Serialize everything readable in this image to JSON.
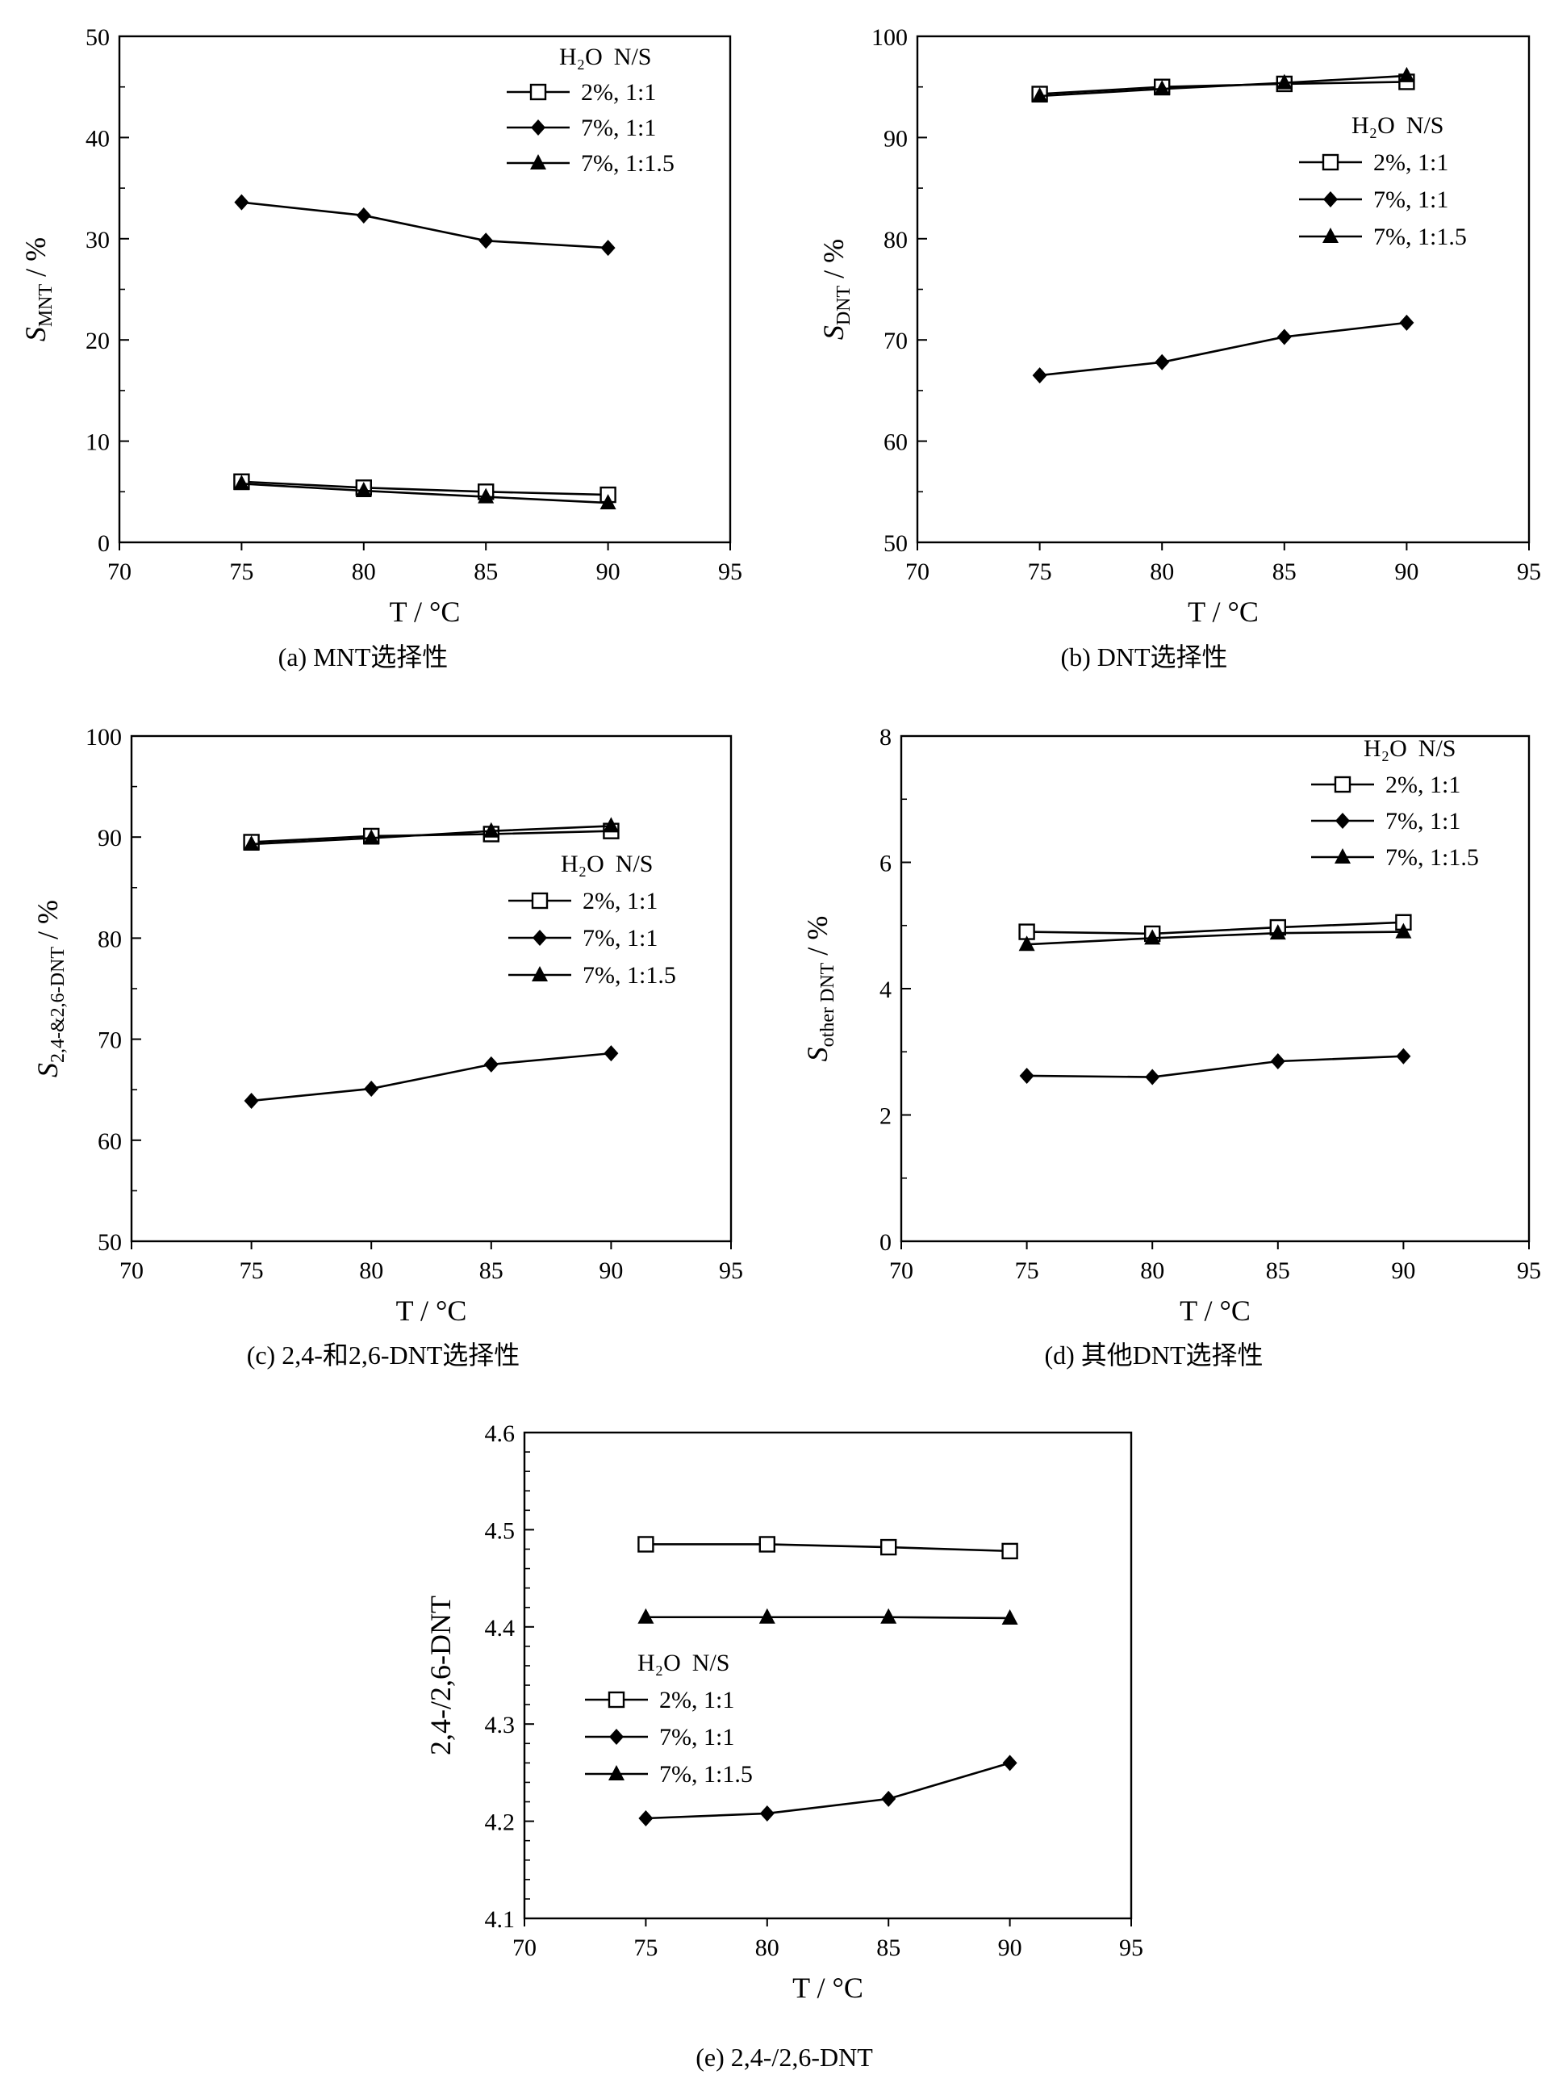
{
  "legend_header": {
    "h2o": "H₂O",
    "ns": "N/S"
  },
  "series_names": [
    "2%, 1:1",
    "7%, 1:1",
    "7%, 1:1.5"
  ],
  "markers": [
    "open-square",
    "filled-diamond",
    "filled-triangle"
  ],
  "colors": {
    "line": "#000000",
    "background": "#ffffff"
  },
  "chart_data": [
    {
      "id": "a",
      "type": "line",
      "caption": "(a) MNT选择性",
      "xlabel": "T / °C",
      "ylabel_main": "S",
      "ylabel_sub": "MNT",
      "ylabel_tail": " / %",
      "xlim": [
        70,
        95
      ],
      "xticks": [
        70,
        75,
        80,
        85,
        90,
        95
      ],
      "ylim": [
        0,
        50
      ],
      "yticks": [
        0,
        10,
        20,
        30,
        40,
        50
      ],
      "yticks_minor": [
        5,
        15,
        25,
        35,
        45
      ],
      "legend_position": "top-right",
      "x": [
        75,
        80,
        85,
        90
      ],
      "series": [
        {
          "name": "2%, 1:1",
          "values": [
            6.0,
            5.4,
            5.0,
            4.7
          ]
        },
        {
          "name": "7%, 1:1",
          "values": [
            33.6,
            32.3,
            29.8,
            29.1
          ]
        },
        {
          "name": "7%, 1:1.5",
          "values": [
            5.8,
            5.1,
            4.5,
            3.9
          ]
        }
      ]
    },
    {
      "id": "b",
      "type": "line",
      "caption": "(b) DNT选择性",
      "xlabel": "T / °C",
      "ylabel_main": "S",
      "ylabel_sub": "DNT",
      "ylabel_tail": " / %",
      "xlim": [
        70,
        95
      ],
      "xticks": [
        70,
        75,
        80,
        85,
        90,
        95
      ],
      "ylim": [
        50,
        100
      ],
      "yticks": [
        50,
        60,
        70,
        80,
        90,
        100
      ],
      "yticks_minor": [
        55,
        65,
        75,
        85,
        95
      ],
      "legend_position": "right",
      "x": [
        75,
        80,
        85,
        90
      ],
      "series": [
        {
          "name": "2%, 1:1",
          "values": [
            94.3,
            95.0,
            95.3,
            95.5
          ]
        },
        {
          "name": "7%, 1:1",
          "values": [
            66.5,
            67.8,
            70.3,
            71.7
          ]
        },
        {
          "name": "7%, 1:1.5",
          "values": [
            94.1,
            94.8,
            95.4,
            96.1
          ]
        }
      ]
    },
    {
      "id": "c",
      "type": "line",
      "caption": "(c) 2,4-和2,6-DNT选择性",
      "xlabel": "T / °C",
      "ylabel_main": "S",
      "ylabel_sub": "2,4-&2,6-DNT",
      "ylabel_tail": " / %",
      "xlim": [
        70,
        95
      ],
      "xticks": [
        70,
        75,
        80,
        85,
        90,
        95
      ],
      "ylim": [
        50,
        100
      ],
      "yticks": [
        50,
        60,
        70,
        80,
        90,
        100
      ],
      "yticks_minor": [
        55,
        65,
        75,
        85,
        95
      ],
      "legend_position": "right",
      "x": [
        75,
        80,
        85,
        90
      ],
      "series": [
        {
          "name": "2%, 1:1",
          "values": [
            89.5,
            90.1,
            90.3,
            90.6
          ]
        },
        {
          "name": "7%, 1:1",
          "values": [
            63.9,
            65.1,
            67.5,
            68.6
          ]
        },
        {
          "name": "7%, 1:1.5",
          "values": [
            89.3,
            89.9,
            90.6,
            91.1
          ]
        }
      ]
    },
    {
      "id": "d",
      "type": "line",
      "caption": "(d) 其他DNT选择性",
      "xlabel": "T / °C",
      "ylabel_main": "S",
      "ylabel_sub": "other DNT",
      "ylabel_tail": " / %",
      "xlim": [
        70,
        95
      ],
      "xticks": [
        70,
        75,
        80,
        85,
        90,
        95
      ],
      "ylim": [
        0,
        8
      ],
      "yticks": [
        0,
        2,
        4,
        6,
        8
      ],
      "yticks_minor": [
        1,
        3,
        5,
        7
      ],
      "legend_position": "top-right",
      "x": [
        75,
        80,
        85,
        90
      ],
      "series": [
        {
          "name": "2%, 1:1",
          "values": [
            4.9,
            4.87,
            4.97,
            5.05
          ]
        },
        {
          "name": "7%, 1:1",
          "values": [
            2.62,
            2.6,
            2.85,
            2.93
          ]
        },
        {
          "name": "7%, 1:1.5",
          "values": [
            4.7,
            4.8,
            4.88,
            4.9
          ]
        }
      ]
    },
    {
      "id": "e",
      "type": "line",
      "caption": "(e) 2,4-/2,6-DNT",
      "xlabel": "T / °C",
      "ylabel_main": "2,4-/2,6-DNT",
      "ylabel_sub": "",
      "ylabel_tail": "",
      "xlim": [
        70,
        95
      ],
      "xticks": [
        70,
        75,
        80,
        85,
        90,
        95
      ],
      "ylim": [
        4.1,
        4.6
      ],
      "yticks": [
        4.1,
        4.2,
        4.3,
        4.4,
        4.5,
        4.6
      ],
      "yticks_minor": [
        4.12,
        4.14,
        4.16,
        4.18,
        4.22,
        4.24,
        4.26,
        4.28,
        4.32,
        4.34,
        4.36,
        4.38,
        4.42,
        4.44,
        4.46,
        4.48,
        4.52,
        4.54,
        4.56,
        4.58
      ],
      "legend_position": "lower-left",
      "x": [
        75,
        80,
        85,
        90
      ],
      "series": [
        {
          "name": "2%, 1:1",
          "values": [
            4.485,
            4.485,
            4.482,
            4.478
          ]
        },
        {
          "name": "7%, 1:1",
          "values": [
            4.203,
            4.208,
            4.223,
            4.26
          ]
        },
        {
          "name": "7%, 1:1.5",
          "values": [
            4.41,
            4.41,
            4.41,
            4.409
          ]
        }
      ]
    }
  ]
}
